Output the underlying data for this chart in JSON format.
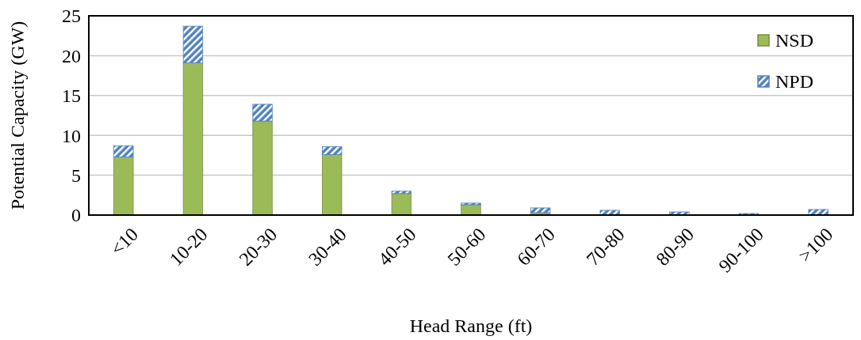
{
  "chart_data": {
    "type": "bar",
    "stacked": true,
    "xlabel": "Head Range (ft)",
    "ylabel": "Potential Capacity (GW)",
    "categories": [
      "<10",
      "10-20",
      "20-30",
      "30-40",
      "40-50",
      "50-60",
      "60-70",
      "70-80",
      "80-90",
      "90-100",
      ">100"
    ],
    "series": [
      {
        "name": "NSD",
        "color": "#9bbb59",
        "values": [
          7.3,
          19.1,
          11.8,
          7.6,
          2.7,
          1.3,
          0.3,
          0,
          0,
          0,
          0
        ]
      },
      {
        "name": "NPD",
        "color": "#4f81bd",
        "values": [
          1.4,
          4.6,
          2.1,
          1.0,
          0.3,
          0.2,
          0.6,
          0.6,
          0.4,
          0.2,
          0.7
        ]
      }
    ],
    "ylim": [
      0,
      25
    ],
    "yticks": [
      0,
      5,
      10,
      15,
      20,
      25
    ],
    "grid": "y",
    "legend": "top right"
  }
}
